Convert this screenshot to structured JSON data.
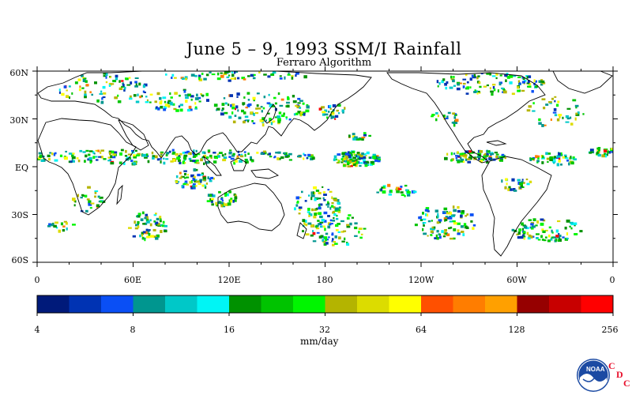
{
  "map": {
    "title": "June 5 – 9, 1993 SSM/I Rainfall",
    "subtitle": "Ferraro Algorithm",
    "lat_labels": [
      "60N",
      "30N",
      "EQ",
      "30S",
      "60S"
    ],
    "lon_labels": [
      "0",
      "60E",
      "120E",
      "180",
      "120W",
      "60W",
      "0"
    ]
  },
  "colorbar": {
    "units": "mm/day",
    "tick_labels": [
      "4",
      "8",
      "16",
      "32",
      "64",
      "128",
      "256"
    ],
    "colors": [
      "#001a7a",
      "#0033b3",
      "#0a4ff5",
      "#00968f",
      "#00c8c8",
      "#00f5f5",
      "#009100",
      "#00c300",
      "#00f500",
      "#b4b400",
      "#dcdc00",
      "#ffff00",
      "#ff5000",
      "#ff7d00",
      "#ffa000",
      "#960000",
      "#c80000",
      "#ff0000"
    ]
  },
  "logo": {
    "name": "noaa-logo",
    "text": "NOAA",
    "letters": [
      "C",
      "D",
      "C"
    ]
  }
}
